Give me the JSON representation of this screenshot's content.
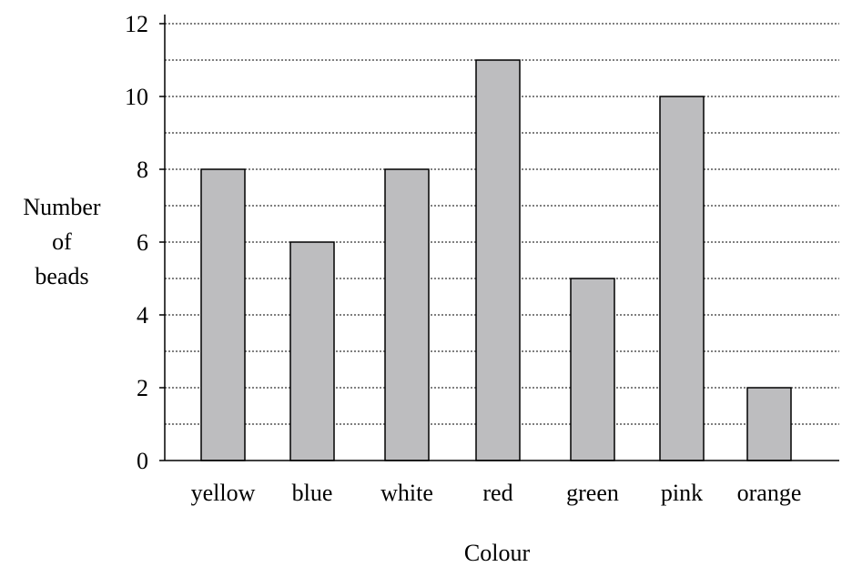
{
  "chart_data": {
    "type": "bar",
    "categories": [
      "yellow",
      "blue",
      "white",
      "red",
      "green",
      "pink",
      "orange"
    ],
    "values": [
      8,
      6,
      8,
      11,
      5,
      10,
      2
    ],
    "title": "",
    "xlabel": "Colour",
    "ylabel_lines": [
      "Number",
      "of",
      "beads"
    ],
    "ylim": [
      0,
      12
    ],
    "yticks": [
      0,
      2,
      4,
      6,
      8,
      10,
      12
    ],
    "grid": true,
    "bar_color": "#bdbdbf"
  }
}
